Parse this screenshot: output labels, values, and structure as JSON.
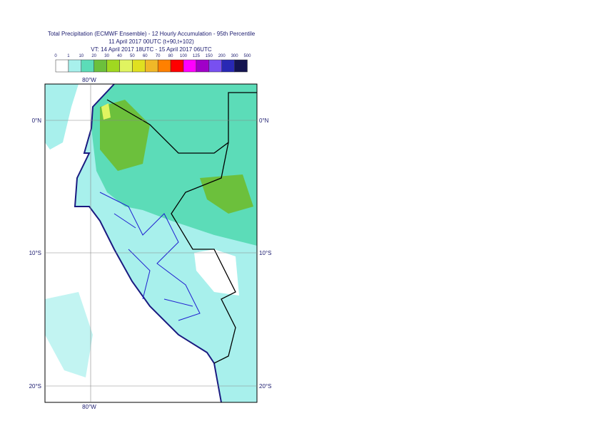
{
  "header": {
    "title": "Total Precipitation (ECMWF Ensemble) - 12 Hourly Accumulation - 95th Percentile",
    "base": "11 April 2017 00UTC (t+90,t+102)",
    "valid": "VT: 14 April 2017 18UTC - 15 April 2017 06UTC"
  },
  "legend": {
    "levels": [
      0,
      1,
      10,
      20,
      30,
      40,
      50,
      60,
      70,
      80,
      100,
      125,
      150,
      200,
      300,
      500
    ],
    "colors": [
      "#ffffff",
      "#a8f0ec",
      "#5cdcb8",
      "#6cc03c",
      "#a0d820",
      "#e0f460",
      "#e0e020",
      "#f0b828",
      "#ff8000",
      "#ff0000",
      "#ff00ff",
      "#a000c8",
      "#7850f0",
      "#2828b4",
      "#141450"
    ]
  },
  "map": {
    "lon_labels": [
      "80°W"
    ],
    "lat_labels": [
      "0°N",
      "10°S",
      "20°S"
    ]
  }
}
